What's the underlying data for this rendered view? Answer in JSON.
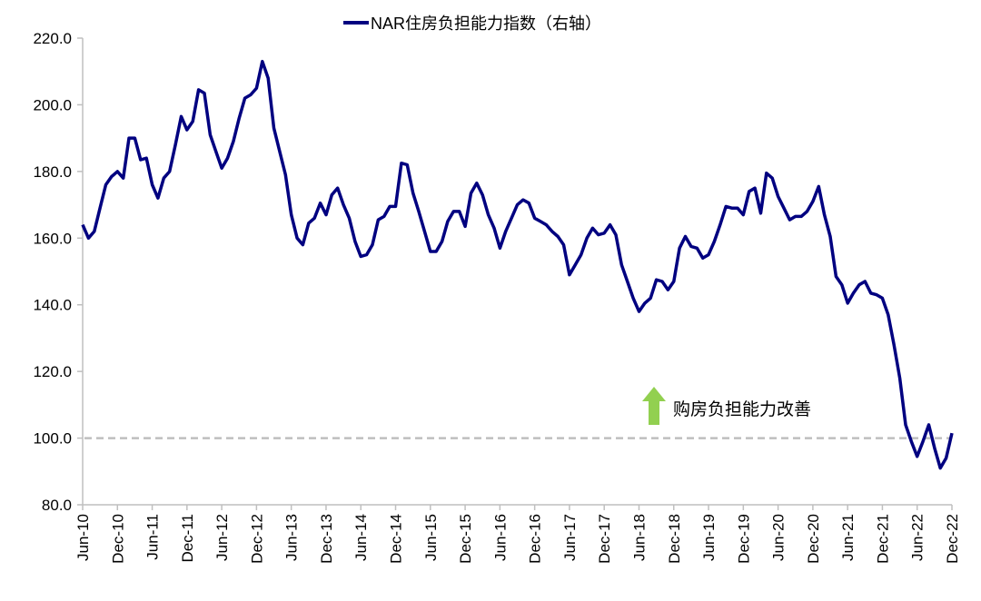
{
  "chart_data": {
    "type": "line",
    "title": "",
    "legend": {
      "label": "NAR住房负担能力指数（右轴）",
      "placement": "top-center"
    },
    "xlabel": "",
    "ylabel": "",
    "ylim": [
      80,
      220
    ],
    "yticks": [
      "80.0",
      "100.0",
      "120.0",
      "140.0",
      "160.0",
      "180.0",
      "200.0",
      "220.0"
    ],
    "xticks": [
      "Jun-10",
      "Dec-10",
      "Jun-11",
      "Dec-11",
      "Jun-12",
      "Dec-12",
      "Jun-13",
      "Dec-13",
      "Jun-14",
      "Dec-14",
      "Jun-15",
      "Dec-15",
      "Jun-16",
      "Dec-16",
      "Jun-17",
      "Dec-17",
      "Jun-18",
      "Dec-18",
      "Jun-19",
      "Dec-19",
      "Jun-20",
      "Dec-20",
      "Jun-21",
      "Dec-21",
      "Jun-22",
      "Dec-22"
    ],
    "x_start": "Jun-10",
    "x_end": "Dec-22",
    "frequency": "monthly",
    "series": [
      {
        "name": "NAR住房负担能力指数（右轴）",
        "color": "#000080",
        "values": [
          164,
          160,
          162,
          169,
          176,
          178.5,
          180,
          178,
          190,
          190,
          183.5,
          184,
          176,
          172,
          178,
          180,
          188,
          196.5,
          192.5,
          195,
          204.5,
          203.5,
          191,
          186,
          181,
          184,
          189,
          196,
          202,
          203,
          205,
          213,
          208,
          193,
          186,
          179,
          167,
          160,
          158,
          164.5,
          166,
          170.5,
          167,
          173,
          175,
          170,
          166,
          159,
          154.5,
          155,
          158,
          165.5,
          166.5,
          169.5,
          169.5,
          182.5,
          182,
          173.5,
          168,
          162,
          156,
          156,
          159,
          165,
          168,
          168,
          163.5,
          173.5,
          176.5,
          173,
          167,
          163,
          157,
          162,
          166,
          170,
          171.5,
          170.5,
          166,
          165,
          164,
          162,
          160.5,
          158,
          149,
          152,
          155,
          160,
          163,
          161,
          161.5,
          164,
          161,
          152,
          147,
          142,
          138,
          140.5,
          142,
          147.5,
          147,
          144.5,
          147,
          157,
          160.5,
          157.5,
          157,
          154,
          155,
          159,
          164,
          169.5,
          169,
          169,
          167,
          174,
          175,
          167.5,
          179.5,
          178,
          172.5,
          169,
          165.5,
          166.5,
          166.5,
          168,
          171,
          175.5,
          167,
          160.5,
          148.5,
          146,
          140.5,
          143.5,
          146,
          147,
          143.5,
          143,
          142,
          137,
          128,
          118,
          104,
          99,
          94.5,
          99,
          104,
          97,
          91,
          94,
          101.5
        ]
      }
    ],
    "reference_line": {
      "value": 100,
      "color": "#bfbfbf",
      "style": "dashed"
    },
    "annotation": {
      "text": "购房负担能力改善",
      "arrow_color": "#92d050",
      "arrow_direction": "up"
    },
    "grid": false
  }
}
